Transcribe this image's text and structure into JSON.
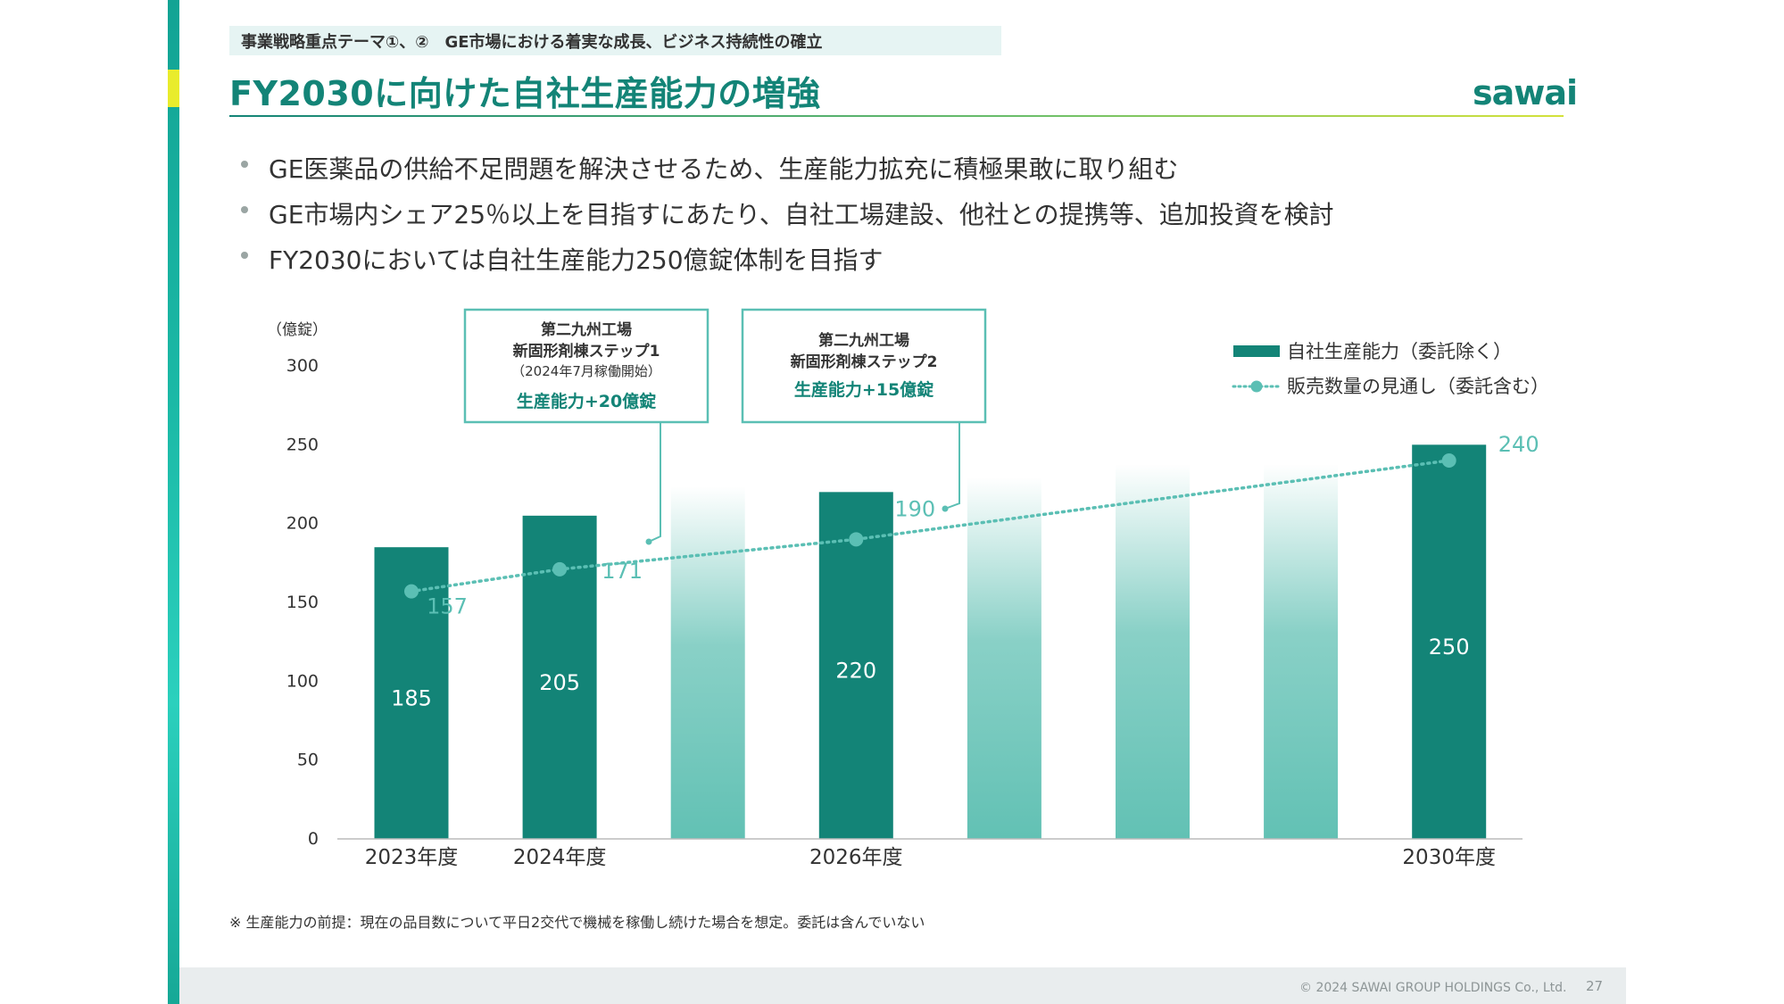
{
  "header": {
    "topic": "事業戦略重点テーマ①、②　GE市場における着実な成長、ビジネス持続性の確立",
    "title": "FY2030に向けた自社生産能力の増強",
    "logo": "sawai"
  },
  "bullets": [
    "GE医薬品の供給不足問題を解決させるため、生産能力拡充に積極果敢に取り組む",
    "GE市場内シェア25％以上を目指すにあたり、自社工場建設、他社との提携等、追加投資を検討",
    "FY2030においては自社生産能力250億錠体制を目指す"
  ],
  "callouts": [
    {
      "line1": "第二九州工場",
      "line2": "新固形剤棟ステップ1",
      "line3": "（2024年7月稼働開始）",
      "line4": "生産能力+20億錠"
    },
    {
      "line1": "第二九州工場",
      "line2": "新固形剤棟ステップ2",
      "line3": "",
      "line4": "生産能力+15億錠"
    }
  ],
  "chart_data": {
    "type": "bar",
    "ylabel": "（億錠）",
    "ylim": [
      0,
      300
    ],
    "yticks": [
      0,
      50,
      100,
      150,
      200,
      250,
      300
    ],
    "categories": [
      "2023年度",
      "2024年度",
      "",
      "2026年度",
      "",
      "",
      "",
      "2030年度"
    ],
    "series": [
      {
        "name": "自社生産能力（委託除く）",
        "kind": "bar",
        "values": [
          185,
          205,
          null,
          220,
          null,
          null,
          null,
          250
        ],
        "labels": [
          "185",
          "205",
          "",
          "220",
          "",
          "",
          "",
          "250"
        ],
        "color": "#138477"
      },
      {
        "name": "販売数量の見通し（委託含む）",
        "kind": "line",
        "values": [
          157,
          171,
          null,
          190,
          null,
          null,
          null,
          240
        ],
        "labels": [
          "157",
          "171",
          "",
          "190",
          "",
          "",
          "",
          "240"
        ],
        "color": "#5bbfb4"
      }
    ],
    "legend": "top-right",
    "grid": false
  },
  "colors": {
    "brand": "#138477",
    "light_teal": "#5bbfb4",
    "faded_bar": "#62c1b4"
  },
  "footnote": "※ 生産能力の前提：現在の品目数について平日2交代で機械を稼働し続けた場合を想定。委託は含んでいない",
  "footer": {
    "copyright": "© 2024 SAWAI GROUP HOLDINGS Co., Ltd.",
    "page": "27"
  }
}
